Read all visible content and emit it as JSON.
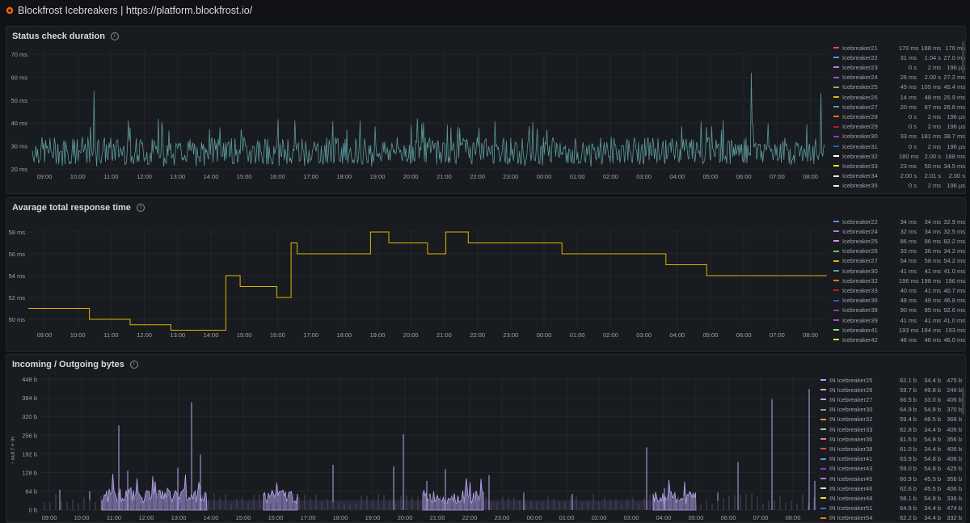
{
  "header": {
    "title": "Blockfrost Icebreakers | https://platform.blockfrost.io/"
  },
  "colors": {
    "accent": "#f46800",
    "teal": "#5d999c",
    "yellow": "#e0b400",
    "purple": "#b7a9ee",
    "grid": "#24262c"
  },
  "panels": [
    {
      "title": "Status check duration",
      "y_ticks": [
        "70 ms",
        "60 ms",
        "50 ms",
        "40 ms",
        "30 ms",
        "20 ms"
      ],
      "x_ticks": [
        "09:00",
        "10:00",
        "11:00",
        "12:00",
        "13:00",
        "14:00",
        "15:00",
        "16:00",
        "17:00",
        "18:00",
        "19:00",
        "20:00",
        "21:00",
        "22:00",
        "23:00",
        "00:00",
        "01:00",
        "02:00",
        "03:00",
        "04:00",
        "05:00",
        "06:00",
        "07:00",
        "08:00"
      ],
      "legend": [
        {
          "name": "Icebreaker21",
          "color": "#f2495c",
          "min": "170 ms",
          "max": "188 ms",
          "last": "176 ms"
        },
        {
          "name": "Icebreaker22",
          "color": "#5794f2",
          "min": "31 ms",
          "max": "1.04 s",
          "last": "27.0 ms"
        },
        {
          "name": "Icebreaker23",
          "color": "#b877d9",
          "min": "0 s",
          "max": "2 ms",
          "last": "196 µs"
        },
        {
          "name": "Icebreaker24",
          "color": "#a352cc",
          "min": "26 ms",
          "max": "2.00 s",
          "last": "27.2 ms"
        },
        {
          "name": "Icebreaker25",
          "color": "#73bf69",
          "min": "45 ms",
          "max": "105 ms",
          "last": "45.4 ms"
        },
        {
          "name": "Icebreaker26",
          "color": "#e0b400",
          "min": "14 ms",
          "max": "48 ms",
          "last": "25.9 ms"
        },
        {
          "name": "Icebreaker27",
          "color": "#5d999c",
          "min": "20 ms",
          "max": "67 ms",
          "last": "26.8 ms"
        },
        {
          "name": "Icebreaker28",
          "color": "#ff780a",
          "min": "0 s",
          "max": "2 ms",
          "last": "196 µs"
        },
        {
          "name": "Icebreaker29",
          "color": "#c4162a",
          "min": "0 s",
          "max": "2 ms",
          "last": "196 µs"
        },
        {
          "name": "Icebreaker30",
          "color": "#8f3bb8",
          "min": "33 ms",
          "max": "181 ms",
          "last": "38.7 ms"
        },
        {
          "name": "Icebreaker31",
          "color": "#1f60c4",
          "min": "0 s",
          "max": "2 ms",
          "last": "196 µs"
        },
        {
          "name": "Icebreaker32",
          "color": "#ffffff",
          "min": "180 ms",
          "max": "2.00 s",
          "last": "188 ms"
        },
        {
          "name": "Icebreaker33",
          "color": "#fade2a",
          "min": "23 ms",
          "max": "50 ms",
          "last": "34.5 ms"
        },
        {
          "name": "Icebreaker34",
          "color": "#fff3b8",
          "min": "2.00 s",
          "max": "2.01 s",
          "last": "2.00 s"
        },
        {
          "name": "Icebreaker35",
          "color": "#ffe0e5",
          "min": "0 s",
          "max": "2 ms",
          "last": "196 µs"
        }
      ]
    },
    {
      "title": "Avarage total response time",
      "y_ticks": [
        "58 ms",
        "56 ms",
        "54 ms",
        "52 ms",
        "50 ms"
      ],
      "x_ticks": [
        "09:00",
        "10:00",
        "11:00",
        "12:00",
        "13:00",
        "14:00",
        "15:00",
        "16:00",
        "17:00",
        "18:00",
        "19:00",
        "20:00",
        "21:00",
        "22:00",
        "23:00",
        "00:00",
        "01:00",
        "02:00",
        "03:00",
        "04:00",
        "05:00",
        "06:00",
        "07:00",
        "08:00"
      ],
      "series_values": [
        [
          0,
          51
        ],
        [
          1.5,
          51
        ],
        [
          1.5,
          50
        ],
        [
          2.5,
          50
        ],
        [
          2.5,
          49.5
        ],
        [
          3.5,
          49.5
        ],
        [
          3.5,
          49
        ],
        [
          4.85,
          49
        ],
        [
          4.85,
          54
        ],
        [
          5.2,
          54
        ],
        [
          5.2,
          53
        ],
        [
          6.1,
          53
        ],
        [
          6.1,
          52
        ],
        [
          6.45,
          52
        ],
        [
          6.45,
          57
        ],
        [
          6.6,
          57
        ],
        [
          6.6,
          56
        ],
        [
          8.4,
          56
        ],
        [
          8.4,
          58
        ],
        [
          8.85,
          58
        ],
        [
          8.85,
          57
        ],
        [
          9.8,
          57
        ],
        [
          9.8,
          56
        ],
        [
          10.25,
          56
        ],
        [
          10.25,
          58
        ],
        [
          10.8,
          58
        ],
        [
          10.8,
          57
        ],
        [
          13.1,
          57
        ],
        [
          13.1,
          56
        ],
        [
          15.65,
          56
        ],
        [
          15.65,
          55
        ],
        [
          16.65,
          55
        ],
        [
          16.65,
          54
        ],
        [
          19.6,
          54
        ]
      ],
      "legend": [
        {
          "name": "Icebreaker22",
          "color": "#5794f2",
          "min": "34 ms",
          "max": "34 ms",
          "last": "32.9 ms"
        },
        {
          "name": "Icebreaker24",
          "color": "#b877d9",
          "min": "32 ms",
          "max": "34 ms",
          "last": "32.5 ms"
        },
        {
          "name": "Icebreaker25",
          "color": "#ca95e5",
          "min": "86 ms",
          "max": "86 ms",
          "last": "82.2 ms"
        },
        {
          "name": "Icebreaker26",
          "color": "#73bf69",
          "min": "33 ms",
          "max": "36 ms",
          "last": "34.2 ms"
        },
        {
          "name": "Icebreaker27",
          "color": "#e0b400",
          "min": "54 ms",
          "max": "58 ms",
          "last": "54.2 ms"
        },
        {
          "name": "Icebreaker30",
          "color": "#5d999c",
          "min": "41 ms",
          "max": "41 ms",
          "last": "41.0 ms"
        },
        {
          "name": "Icebreaker32",
          "color": "#ff780a",
          "min": "196 ms",
          "max": "198 ms",
          "last": "196 ms"
        },
        {
          "name": "Icebreaker33",
          "color": "#c4162a",
          "min": "40 ms",
          "max": "41 ms",
          "last": "40.7 ms"
        },
        {
          "name": "Icebreaker36",
          "color": "#1f60c4",
          "min": "48 ms",
          "max": "49 ms",
          "last": "46.8 ms"
        },
        {
          "name": "Icebreaker38",
          "color": "#8f3bb8",
          "min": "90 ms",
          "max": "95 ms",
          "last": "92.6 ms"
        },
        {
          "name": "Icebreaker39",
          "color": "#a352cc",
          "min": "41 ms",
          "max": "41 ms",
          "last": "41.0 ms"
        },
        {
          "name": "Icebreaker41",
          "color": "#96d98d",
          "min": "193 ms",
          "max": "194 ms",
          "last": "193 ms"
        },
        {
          "name": "Icebreaker42",
          "color": "#fade2a",
          "min": "46 ms",
          "max": "46 ms",
          "last": "46.0 ms"
        }
      ]
    },
    {
      "title": "Incoming / Outgoing bytes",
      "y_label": "- out / + in",
      "y_ticks": [
        "448 b",
        "384 b",
        "320 b",
        "256 b",
        "192 b",
        "128 b",
        "64 b",
        "0 b"
      ],
      "x_ticks": [
        "09:00",
        "10:00",
        "11:00",
        "12:00",
        "13:00",
        "14:00",
        "15:00",
        "16:00",
        "17:00",
        "18:00",
        "19:00",
        "20:00",
        "21:00",
        "22:00",
        "23:00",
        "00:00",
        "01:00",
        "02:00",
        "03:00",
        "04:00",
        "05:00",
        "06:00",
        "07:00",
        "08:00"
      ],
      "legend": [
        {
          "name": "IN Icebreaker25",
          "color": "#8ab8ff",
          "min": "62.1 b",
          "max": "34.4 b",
          "last": "475 b"
        },
        {
          "name": "IN Icebreaker26",
          "color": "#ffa6b0",
          "min": "59.7 b",
          "max": "49.8 b",
          "last": "246 b"
        },
        {
          "name": "IN Icebreaker27",
          "color": "#b7a9ee",
          "min": "66.5 b",
          "max": "33.0 b",
          "last": "406 b"
        },
        {
          "name": "IN Icebreaker30",
          "color": "#73bf69",
          "min": "64.9 b",
          "max": "54.8 b",
          "last": "370 b"
        },
        {
          "name": "IN Icebreaker32",
          "color": "#ff9830",
          "min": "59.4 b",
          "max": "48.5 b",
          "last": "368 b"
        },
        {
          "name": "IN Icebreaker33",
          "color": "#96d98d",
          "min": "62.8 b",
          "max": "34.4 b",
          "last": "406 b"
        },
        {
          "name": "IN Icebreaker36",
          "color": "#ff7383",
          "min": "61.6 b",
          "max": "54.8 b",
          "last": "356 b"
        },
        {
          "name": "IN Icebreaker38",
          "color": "#f2495c",
          "min": "61.0 b",
          "max": "34.4 b",
          "last": "406 b"
        },
        {
          "name": "IN Icebreaker41",
          "color": "#5794f2",
          "min": "63.9 b",
          "max": "54.8 b",
          "last": "406 b"
        },
        {
          "name": "IN Icebreaker43",
          "color": "#8f3bb8",
          "min": "59.0 b",
          "max": "54.8 b",
          "last": "425 b"
        },
        {
          "name": "IN Icebreaker45",
          "color": "#b877d9",
          "min": "60.9 b",
          "max": "45.5 b",
          "last": "356 b"
        },
        {
          "name": "IN Icebreaker46",
          "color": "#c8f2c2",
          "min": "62.6 b",
          "max": "45.5 b",
          "last": "406 b"
        },
        {
          "name": "IN Icebreaker48",
          "color": "#fade2a",
          "min": "58.1 b",
          "max": "54.8 b",
          "last": "336 b"
        },
        {
          "name": "IN Icebreaker51",
          "color": "#3274d9",
          "min": "64.6 b",
          "max": "34.4 b",
          "last": "474 b"
        },
        {
          "name": "IN Icebreaker54",
          "color": "#ff780a",
          "min": "62.2 b",
          "max": "34.4 b",
          "last": "332 b"
        }
      ]
    }
  ]
}
